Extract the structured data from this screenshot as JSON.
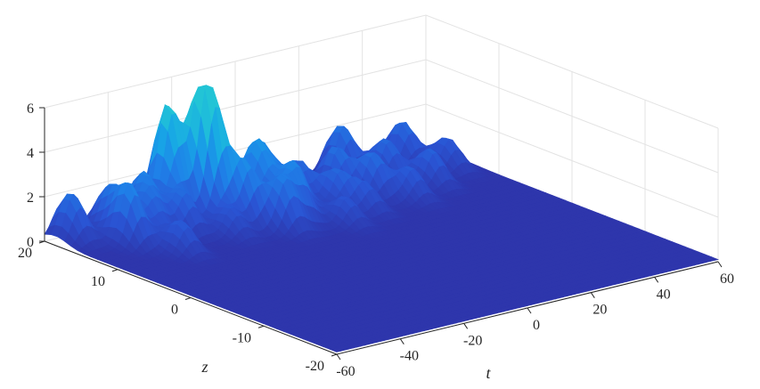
{
  "chart_data": {
    "type": "surface",
    "title": "",
    "xlabel": "t",
    "ylabel": "z",
    "zlabel": "",
    "xlim": [
      -60,
      60
    ],
    "ylim": [
      -20,
      20
    ],
    "zlim": [
      0,
      6
    ],
    "x_ticks": [
      "-60",
      "-40",
      "-20",
      "0",
      "20",
      "40",
      "60"
    ],
    "y_ticks": [
      "-20",
      "-10",
      "0",
      "10",
      "20"
    ],
    "z_ticks": [
      "0",
      "2",
      "4",
      "6"
    ],
    "grid": true,
    "colormap": [
      "#2e33a8",
      "#2a55d4",
      "#1f80e8",
      "#17a6e6",
      "#22c4d6"
    ],
    "background_amplitude": 0.1,
    "peaks": [
      {
        "t": -55,
        "z": 18.5,
        "amp": 2.1
      },
      {
        "t": -46,
        "z": 14.5,
        "amp": 2.6
      },
      {
        "t": -44,
        "z": 18.0,
        "amp": 2.0
      },
      {
        "t": -40,
        "z": 10.0,
        "amp": 1.4
      },
      {
        "t": -38,
        "z": 15.0,
        "amp": 1.6
      },
      {
        "t": -35,
        "z": 17.5,
        "amp": 2.2
      },
      {
        "t": -30,
        "z": 14.0,
        "amp": 1.8
      },
      {
        "t": -26,
        "z": 18.0,
        "amp": 5.0
      },
      {
        "t": -22,
        "z": 11.0,
        "amp": 1.2
      },
      {
        "t": -20,
        "z": 16.5,
        "amp": 3.4
      },
      {
        "t": -18,
        "z": 15.5,
        "amp": 4.3
      },
      {
        "t": -14,
        "z": 12.5,
        "amp": 2.6
      },
      {
        "t": -12,
        "z": 17.0,
        "amp": 2.1
      },
      {
        "t": -9,
        "z": 9.5,
        "amp": 2.2
      },
      {
        "t": -6,
        "z": 14.5,
        "amp": 2.9
      },
      {
        "t": -3,
        "z": 10.5,
        "amp": 2.4
      },
      {
        "t": -1,
        "z": 16.0,
        "amp": 2.4
      },
      {
        "t": 2,
        "z": 12.5,
        "amp": 1.7
      },
      {
        "t": 6,
        "z": 7.5,
        "amp": 1.2
      },
      {
        "t": 8,
        "z": 15.0,
        "amp": 1.8
      },
      {
        "t": 12,
        "z": 11.5,
        "amp": 1.6
      },
      {
        "t": 16,
        "z": 9.0,
        "amp": 1.2
      },
      {
        "t": 20,
        "z": 15.0,
        "amp": 2.0
      },
      {
        "t": 25,
        "z": 12.0,
        "amp": 1.9
      },
      {
        "t": 30,
        "z": 18.5,
        "amp": 2.2
      },
      {
        "t": 31,
        "z": 9.5,
        "amp": 1.4
      },
      {
        "t": 36,
        "z": 15.0,
        "amp": 1.8
      },
      {
        "t": 42,
        "z": 11.5,
        "amp": 1.6
      },
      {
        "t": 47,
        "z": 17.5,
        "amp": 1.9
      },
      {
        "t": 53,
        "z": 14.0,
        "amp": 1.4
      }
    ]
  }
}
